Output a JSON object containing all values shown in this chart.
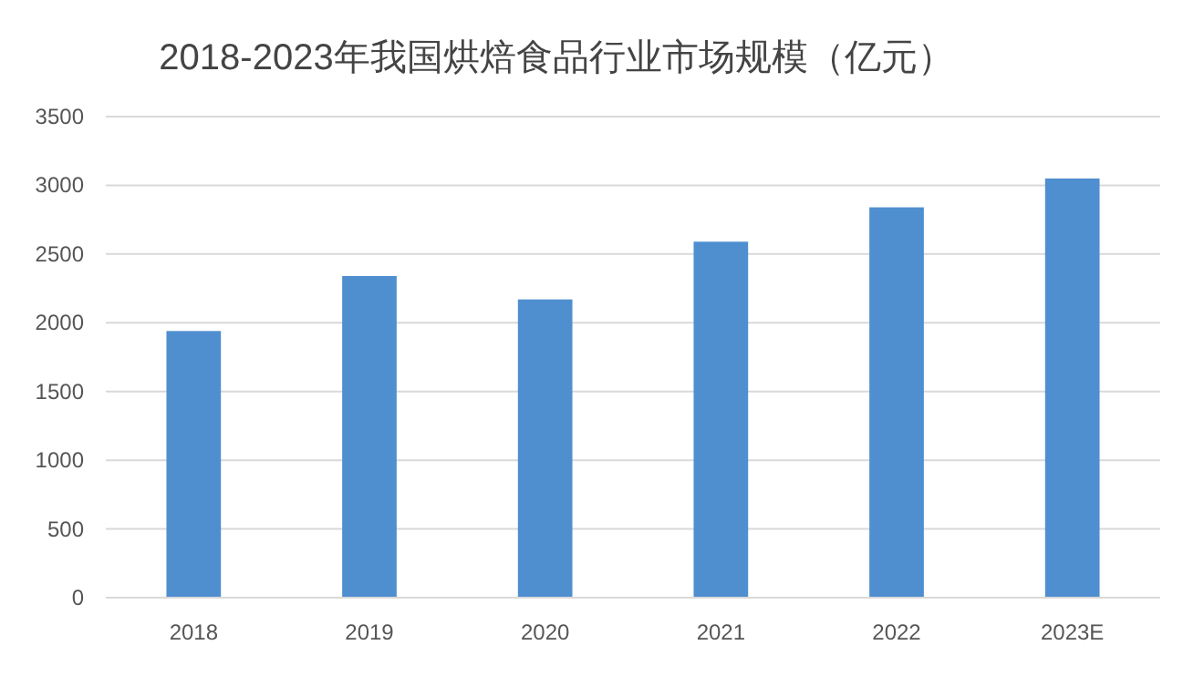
{
  "chart_data": {
    "type": "bar",
    "title": "2018-2023年我国烘焙食品行业市场规模（亿元）",
    "categories": [
      "2018",
      "2019",
      "2020",
      "2021",
      "2022",
      "2023E"
    ],
    "values": [
      1940,
      2340,
      2170,
      2590,
      2840,
      3050
    ],
    "color": "#4f8fd0",
    "ylim": [
      0,
      3500
    ],
    "yticks": [
      0,
      500,
      1000,
      1500,
      2000,
      2500,
      3000,
      3500
    ],
    "grid": "y"
  }
}
